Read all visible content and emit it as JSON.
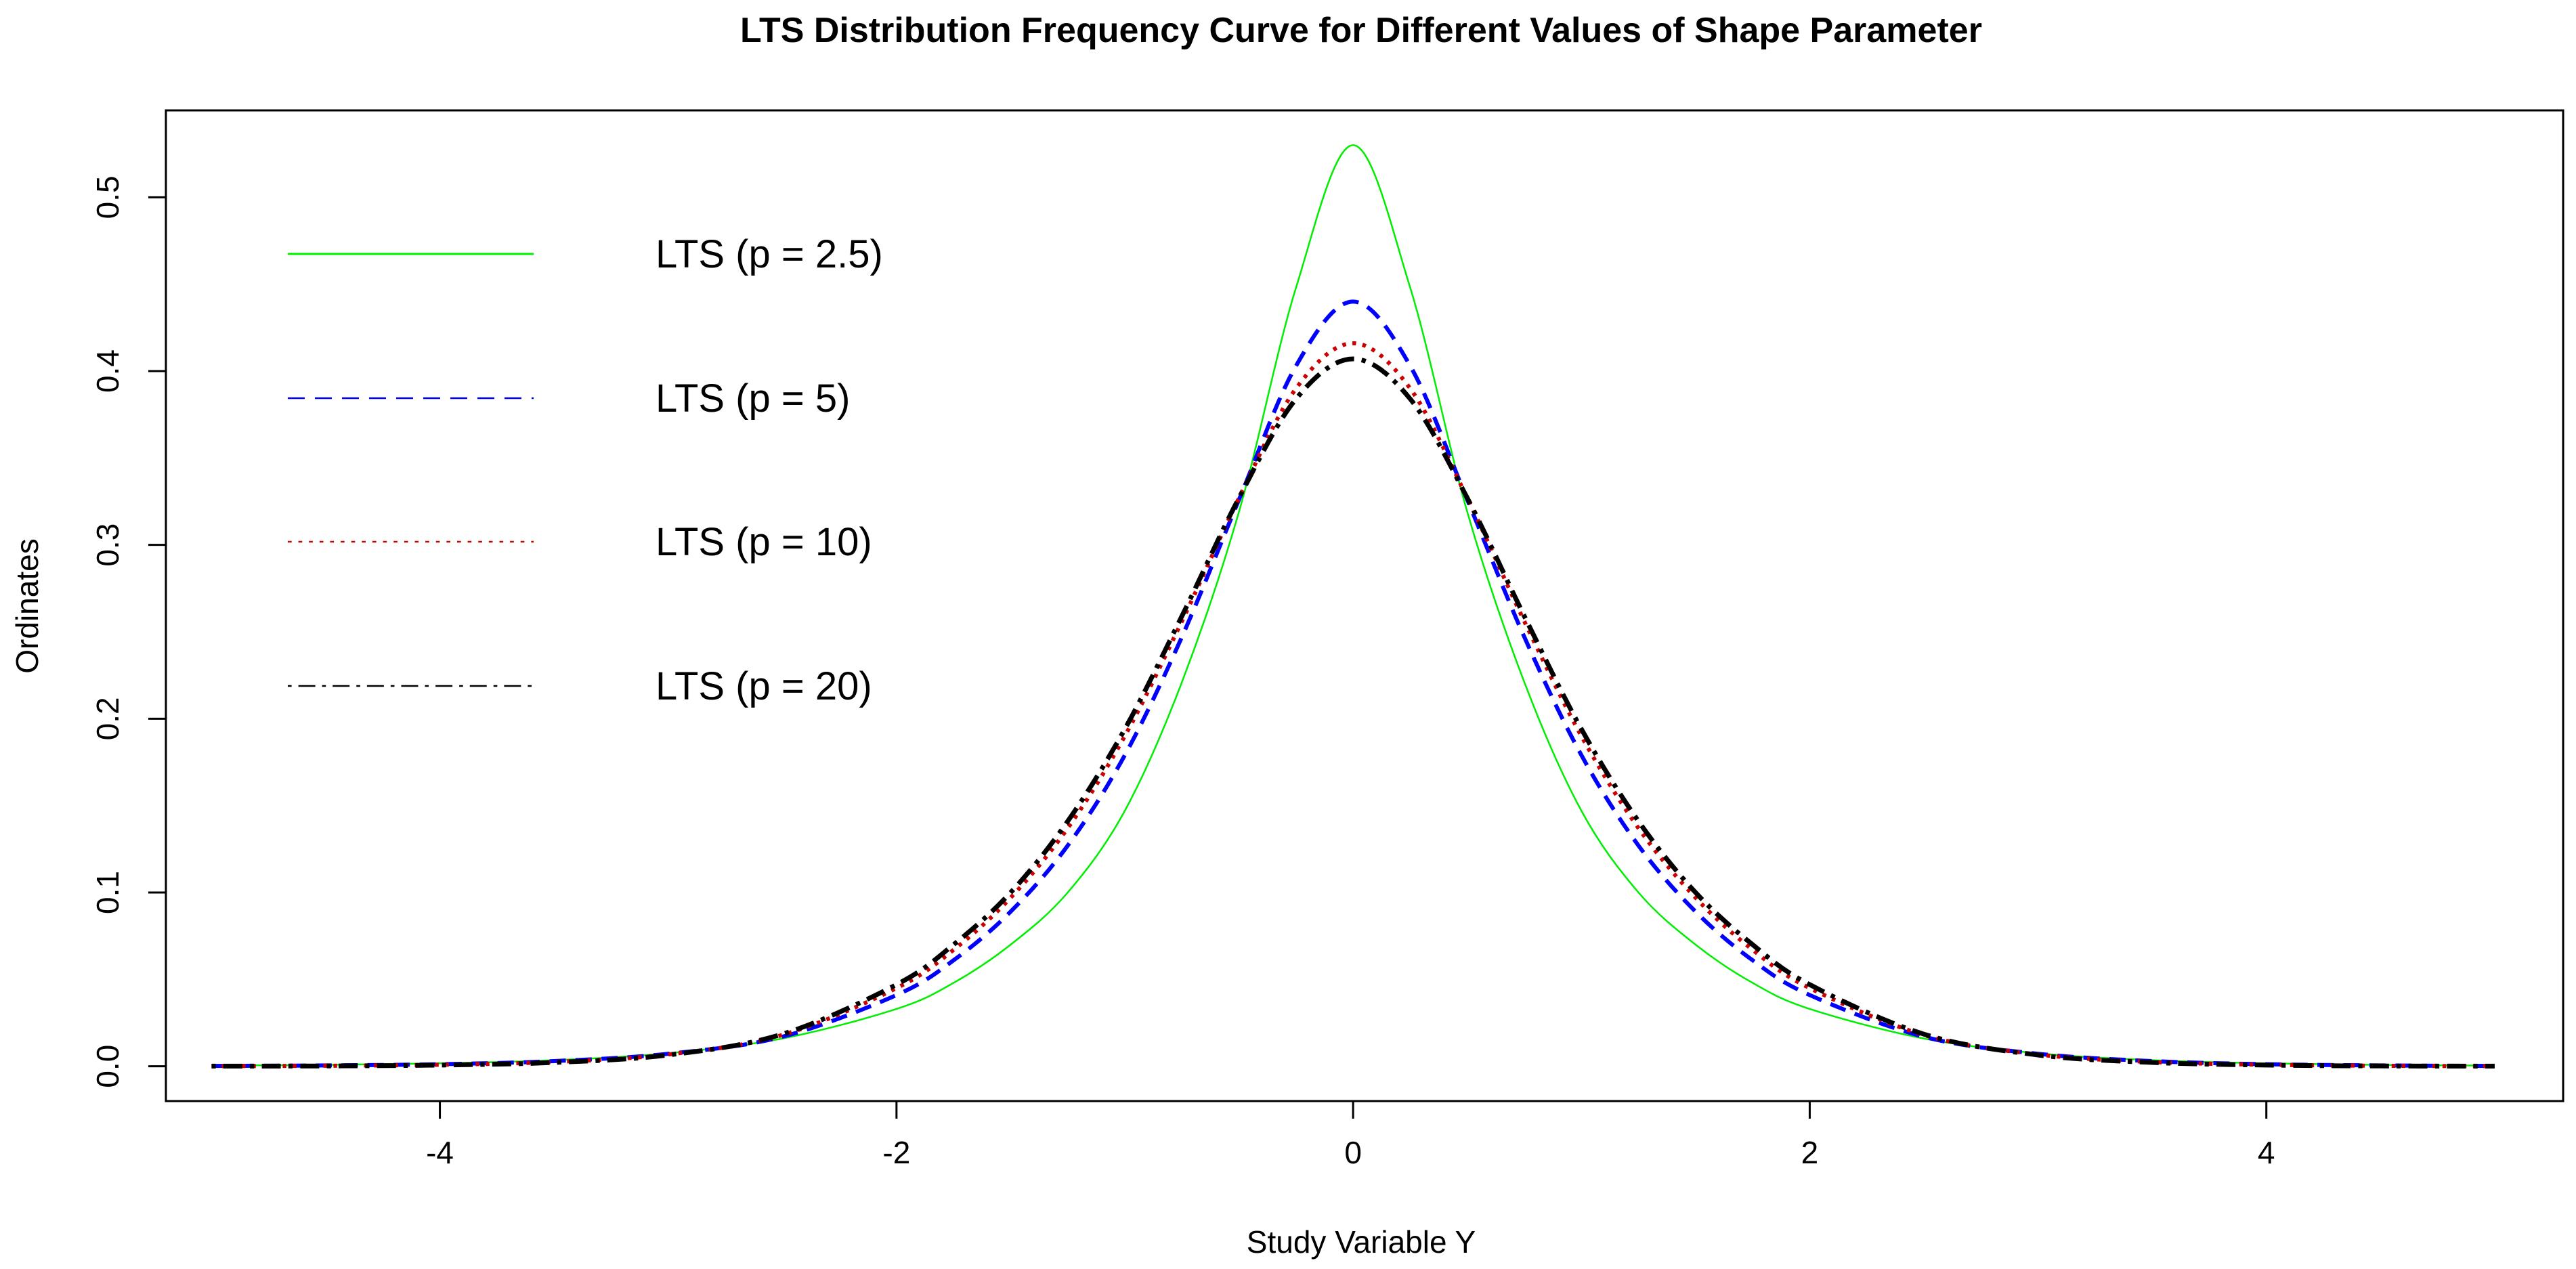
{
  "chart_data": {
    "type": "line",
    "title": "LTS Distribution Frequency Curve for Different Values of Shape Parameter",
    "xlabel": "Study Variable Y",
    "ylabel": "Ordinates",
    "xlim": [
      -5.2,
      5.3
    ],
    "ylim": [
      -0.02,
      0.55
    ],
    "xticks": [
      -4,
      -2,
      0,
      2,
      4
    ],
    "xtick_labels": [
      "-4",
      "-2",
      "0",
      "2",
      "4"
    ],
    "yticks": [
      0.0,
      0.1,
      0.2,
      0.3,
      0.4,
      0.5
    ],
    "ytick_labels": [
      "0.0",
      "0.1",
      "0.2",
      "0.3",
      "0.4",
      "0.5"
    ],
    "grid": false,
    "legend_position": "top-left",
    "x": [
      -5.0,
      -4.5,
      -4.0,
      -3.5,
      -3.0,
      -2.5,
      -2.0,
      -1.75,
      -1.5,
      -1.25,
      -1.0,
      -0.75,
      -0.5,
      -0.25,
      0.0,
      0.25,
      0.5,
      0.75,
      1.0,
      1.25,
      1.5,
      1.75,
      2.0,
      2.5,
      3.0,
      3.5,
      4.0,
      4.5,
      5.0
    ],
    "series": [
      {
        "name": "LTS (p = 2.5)",
        "color": "#00ee00",
        "dash": "solid",
        "values": [
          0.0004,
          0.0008,
          0.0017,
          0.0035,
          0.0075,
          0.016,
          0.033,
          0.048,
          0.07,
          0.1,
          0.147,
          0.221,
          0.319,
          0.448,
          0.53,
          0.448,
          0.319,
          0.221,
          0.147,
          0.1,
          0.07,
          0.048,
          0.033,
          0.016,
          0.0075,
          0.0035,
          0.0017,
          0.0008,
          0.0004
        ]
      },
      {
        "name": "LTS (p = 5)",
        "color": "#0000ff",
        "dash": "dashed",
        "values": [
          0.0002,
          0.0005,
          0.0012,
          0.003,
          0.0072,
          0.017,
          0.041,
          0.061,
          0.089,
          0.127,
          0.179,
          0.247,
          0.326,
          0.403,
          0.44,
          0.403,
          0.326,
          0.247,
          0.179,
          0.127,
          0.089,
          0.061,
          0.041,
          0.017,
          0.0072,
          0.003,
          0.0012,
          0.0005,
          0.0002
        ]
      },
      {
        "name": "LTS (p = 10)",
        "color": "#cc0000",
        "dash": "dotted",
        "values": [
          0.0001,
          0.0003,
          0.0009,
          0.0025,
          0.0068,
          0.018,
          0.045,
          0.067,
          0.097,
          0.137,
          0.19,
          0.256,
          0.327,
          0.39,
          0.416,
          0.39,
          0.327,
          0.256,
          0.19,
          0.137,
          0.097,
          0.067,
          0.045,
          0.018,
          0.0068,
          0.0025,
          0.0009,
          0.0003,
          0.0001
        ]
      },
      {
        "name": "LTS (p = 20)",
        "color": "#000000",
        "dash": "dotdash",
        "values": [
          0.0001,
          0.0002,
          0.0007,
          0.0022,
          0.0065,
          0.0185,
          0.047,
          0.07,
          0.1,
          0.141,
          0.194,
          0.259,
          0.327,
          0.384,
          0.407,
          0.384,
          0.327,
          0.259,
          0.194,
          0.141,
          0.1,
          0.07,
          0.047,
          0.0185,
          0.0065,
          0.0022,
          0.0007,
          0.0002,
          0.0001
        ]
      }
    ]
  }
}
